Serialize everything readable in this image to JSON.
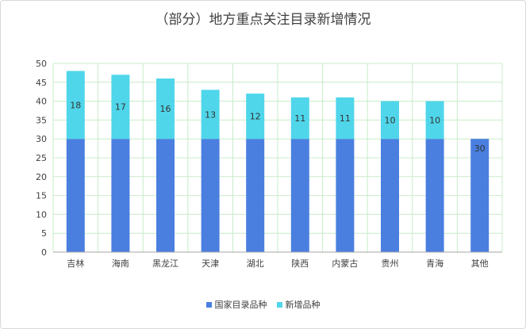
{
  "chart_data": {
    "type": "bar",
    "stacked": true,
    "title": "（部分）地方重点关注目录新增情况",
    "categories": [
      "吉林",
      "海南",
      "黑龙江",
      "天津",
      "湖北",
      "陕西",
      "内蒙古",
      "贵州",
      "青海",
      "其他"
    ],
    "series": [
      {
        "name": "国家目录品种",
        "color": "#4a7fe0",
        "values": [
          30,
          30,
          30,
          30,
          30,
          30,
          30,
          30,
          30,
          30
        ]
      },
      {
        "name": "新增品种",
        "color": "#4fd6ea",
        "values": [
          18,
          17,
          16,
          13,
          12,
          11,
          11,
          10,
          10,
          0
        ]
      }
    ],
    "data_labels": [
      "18",
      "17",
      "16",
      "13",
      "12",
      "11",
      "11",
      "10",
      "10",
      "30"
    ],
    "ylim": [
      0,
      50
    ],
    "yticks": [
      0,
      5,
      10,
      15,
      20,
      25,
      30,
      35,
      40,
      45,
      50
    ],
    "grid": true,
    "legend_position": "bottom"
  }
}
